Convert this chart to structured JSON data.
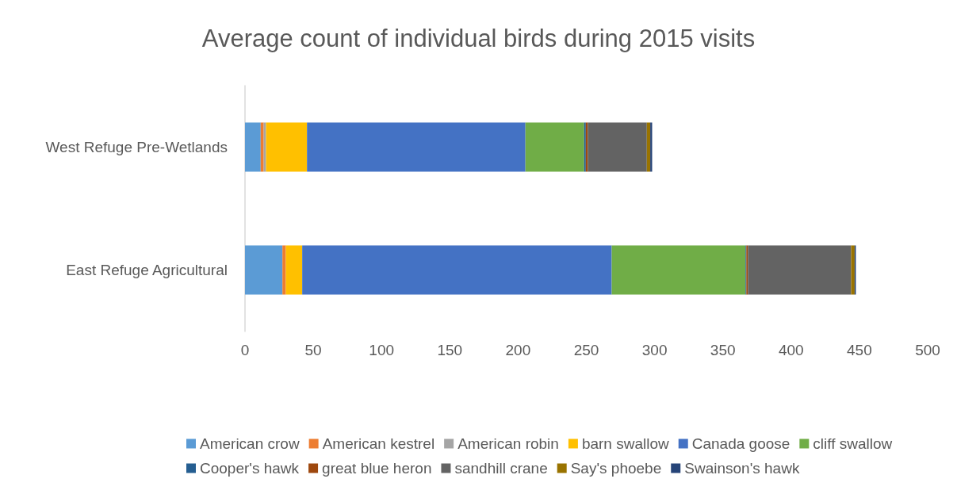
{
  "chart_data": {
    "type": "bar",
    "orientation": "horizontal",
    "stacked": true,
    "title": "Average count of individual birds during 2015 visits",
    "categories": [
      "West Refuge Pre-Wetlands",
      "East Refuge Agricultural"
    ],
    "xlim": [
      0,
      500
    ],
    "xticks": [
      0,
      50,
      100,
      150,
      200,
      250,
      300,
      350,
      400,
      450,
      500
    ],
    "grid": false,
    "legend": "bottom",
    "series": [
      {
        "name": "American crow",
        "color": "#5b9bd5",
        "values": [
          11.5,
          27.4
        ]
      },
      {
        "name": "American kestrel",
        "color": "#ed7d31",
        "values": [
          2.2,
          2.5
        ]
      },
      {
        "name": "American robin",
        "color": "#a5a5a5",
        "values": [
          1.7,
          0
        ]
      },
      {
        "name": "barn swallow",
        "color": "#ffc000",
        "values": [
          30,
          12
        ]
      },
      {
        "name": "Canada goose",
        "color": "#4472c4",
        "values": [
          160,
          226.7
        ]
      },
      {
        "name": "cliff swallow",
        "color": "#70ad47",
        "values": [
          43,
          98
        ]
      },
      {
        "name": "Cooper's hawk",
        "color": "#255e91",
        "values": [
          1.2,
          0.6
        ]
      },
      {
        "name": "great blue heron",
        "color": "#9e480e",
        "values": [
          1.5,
          1.2
        ]
      },
      {
        "name": "sandhill crane",
        "color": "#636363",
        "values": [
          43.2,
          75.5
        ]
      },
      {
        "name": "Say's phoebe",
        "color": "#997300",
        "values": [
          2.5,
          2.6
        ]
      },
      {
        "name": "Swainson's hawk",
        "color": "#264478",
        "values": [
          1.4,
          0.9
        ]
      }
    ]
  }
}
